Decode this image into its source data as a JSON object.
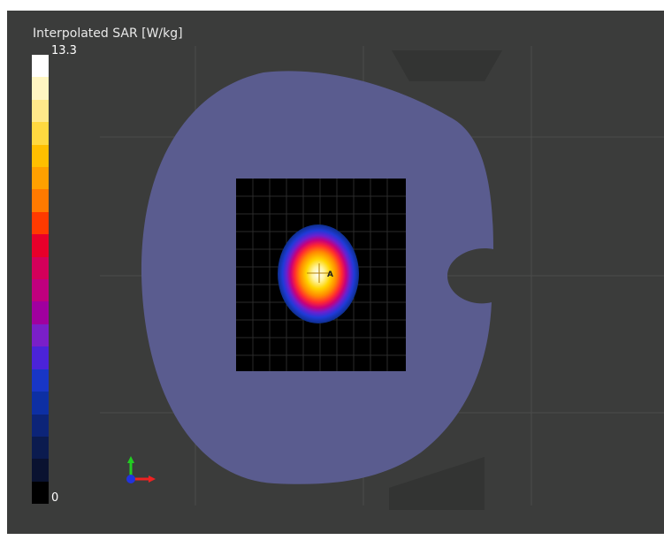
{
  "legend": {
    "title": "Interpolated SAR [W/kg]",
    "max_label": "13.3",
    "min_label": "0",
    "colors": [
      "#ffffff",
      "#fff6c2",
      "#ffe98a",
      "#ffd940",
      "#ffbf00",
      "#ffa000",
      "#ff7a00",
      "#ff3a00",
      "#e8002a",
      "#d4005a",
      "#c0007e",
      "#a0009f",
      "#7a1fc8",
      "#4b23d8",
      "#1836c6",
      "#0d2fa3",
      "#0c2478",
      "#0b1b4f",
      "#0a1230",
      "#000000"
    ]
  },
  "view": {
    "marker_label": "A"
  },
  "colors": {
    "background": "#3b3c3b",
    "phantom": "#5a5c8f",
    "scan_area": "#000000"
  },
  "icons": {
    "axes": "axes-triad-icon"
  }
}
